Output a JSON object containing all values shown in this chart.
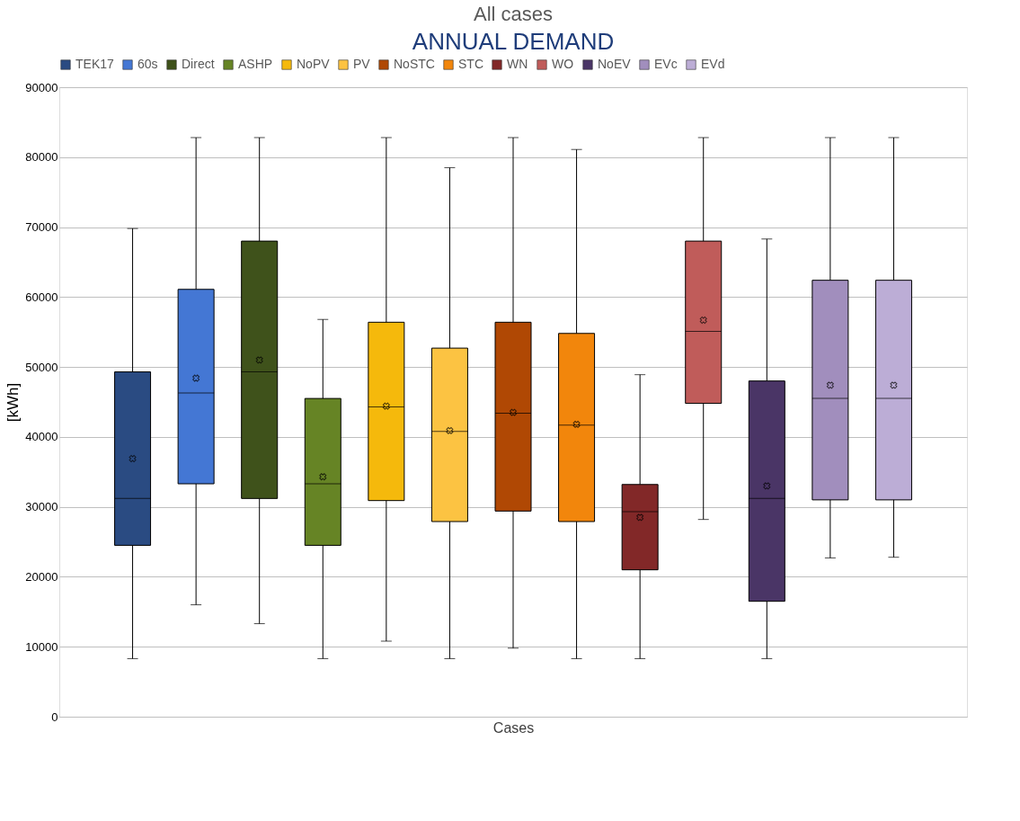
{
  "chart_data": {
    "type": "box",
    "title": "All cases",
    "subtitle": "ANNUAL DEMAND",
    "xlabel": "Cases",
    "ylabel": "[kWh]",
    "categories": [
      null
    ],
    "ylim": [
      0,
      90000
    ],
    "yticks": [
      0,
      10000,
      20000,
      30000,
      40000,
      50000,
      60000,
      70000,
      80000,
      90000
    ],
    "grid": "y",
    "legend": "top",
    "tick_labels": "y",
    "series": [
      {
        "name": "TEK17",
        "color": "#2a4b82",
        "boxes": [
          {
            "low": 8300,
            "q1": 24500,
            "median": 31200,
            "q3": 49300,
            "high": 69800,
            "mean": 36900
          }
        ]
      },
      {
        "name": "60s",
        "color": "#4477d4",
        "boxes": [
          {
            "low": 16000,
            "q1": 33300,
            "median": 46300,
            "q3": 61100,
            "high": 82800,
            "mean": 48400
          }
        ]
      },
      {
        "name": "Direct",
        "color": "#3f521b",
        "boxes": [
          {
            "low": 13300,
            "q1": 31200,
            "median": 49300,
            "q3": 68000,
            "high": 82800,
            "mean": 51000
          }
        ]
      },
      {
        "name": "ASHP",
        "color": "#668425",
        "boxes": [
          {
            "low": 8300,
            "q1": 24500,
            "median": 33300,
            "q3": 45500,
            "high": 56800,
            "mean": 34300
          }
        ]
      },
      {
        "name": "NoPV",
        "color": "#f5b90c",
        "boxes": [
          {
            "low": 10800,
            "q1": 30900,
            "median": 44300,
            "q3": 56400,
            "high": 82800,
            "mean": 44400
          }
        ]
      },
      {
        "name": "PV",
        "color": "#fcc342",
        "boxes": [
          {
            "low": 8300,
            "q1": 27900,
            "median": 40800,
            "q3": 52700,
            "high": 78500,
            "mean": 40900
          }
        ]
      },
      {
        "name": "NoSTC",
        "color": "#b04804",
        "boxes": [
          {
            "low": 9800,
            "q1": 29400,
            "median": 43400,
            "q3": 56400,
            "high": 82800,
            "mean": 43500
          }
        ]
      },
      {
        "name": "STC",
        "color": "#f2860c",
        "boxes": [
          {
            "low": 8300,
            "q1": 27900,
            "median": 41700,
            "q3": 54800,
            "high": 81100,
            "mean": 41800
          }
        ]
      },
      {
        "name": "WN",
        "color": "#822828",
        "boxes": [
          {
            "low": 8300,
            "q1": 21000,
            "median": 29300,
            "q3": 33200,
            "high": 48900,
            "mean": 28500
          }
        ]
      },
      {
        "name": "WO",
        "color": "#c05c5a",
        "boxes": [
          {
            "low": 28200,
            "q1": 44800,
            "median": 55100,
            "q3": 68000,
            "high": 82800,
            "mean": 56700
          }
        ]
      },
      {
        "name": "NoEV",
        "color": "#4a3566",
        "boxes": [
          {
            "low": 8300,
            "q1": 16500,
            "median": 31200,
            "q3": 48000,
            "high": 68300,
            "mean": 33000
          }
        ]
      },
      {
        "name": "EVc",
        "color": "#a18ebd",
        "boxes": [
          {
            "low": 22700,
            "q1": 31000,
            "median": 45500,
            "q3": 62400,
            "high": 82800,
            "mean": 47400
          }
        ]
      },
      {
        "name": "EVd",
        "color": "#bcadd6",
        "boxes": [
          {
            "low": 22800,
            "q1": 31000,
            "median": 45500,
            "q3": 62400,
            "high": 82800,
            "mean": 47400
          }
        ]
      }
    ]
  }
}
